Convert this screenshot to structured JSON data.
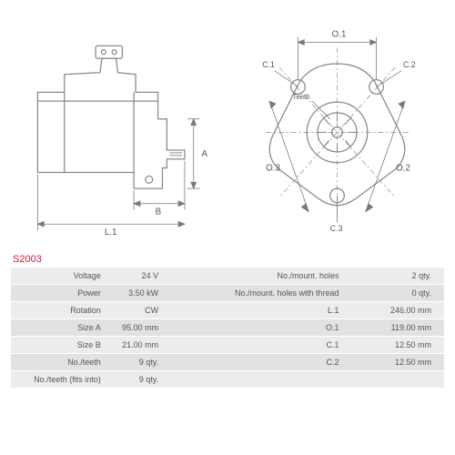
{
  "part_number": "S2003",
  "diagrams": {
    "side_view": {
      "outline_color": "#8a8a8a",
      "dimension_color": "#7a7a7a",
      "dim_labels": {
        "L1": "L.1",
        "A": "A",
        "B": "B"
      }
    },
    "front_view": {
      "outline_color": "#8a8a8a",
      "dimension_color": "#7a7a7a",
      "hole_labels": {
        "C1": "C.1",
        "C2": "C.2",
        "C3": "C.3"
      },
      "span_labels": {
        "O1": "O.1",
        "O2": "O.2",
        "O3": "O.3"
      },
      "teeth_label": "Teeth"
    }
  },
  "specs_left": [
    {
      "label": "Voltage",
      "value": "24 V"
    },
    {
      "label": "Power",
      "value": "3.50 kW"
    },
    {
      "label": "Rotation",
      "value": "CW"
    },
    {
      "label": "Size A",
      "value": "95.00 mm"
    },
    {
      "label": "Size B",
      "value": "21.00 mm"
    },
    {
      "label": "No./teeth",
      "value": "9 qty."
    },
    {
      "label": "No./teeth (fits into)",
      "value": "9 qty."
    }
  ],
  "specs_right": [
    {
      "label": "No./mount. holes",
      "value": "2 qty."
    },
    {
      "label": "No./mount. holes with thread",
      "value": "0 qty."
    },
    {
      "label": "L.1",
      "value": "246.00 mm"
    },
    {
      "label": "O.1",
      "value": "119.00 mm"
    },
    {
      "label": "C.1",
      "value": "12.50 mm"
    },
    {
      "label": "C.2",
      "value": "12.50 mm"
    },
    {
      "label": "",
      "value": ""
    }
  ],
  "styling": {
    "row_bg_odd": "#ececec",
    "row_bg_even": "#e2e2e2",
    "accent": "#c41e3a",
    "text": "#555555",
    "fontsize_table": 9,
    "fontsize_label": 11
  }
}
